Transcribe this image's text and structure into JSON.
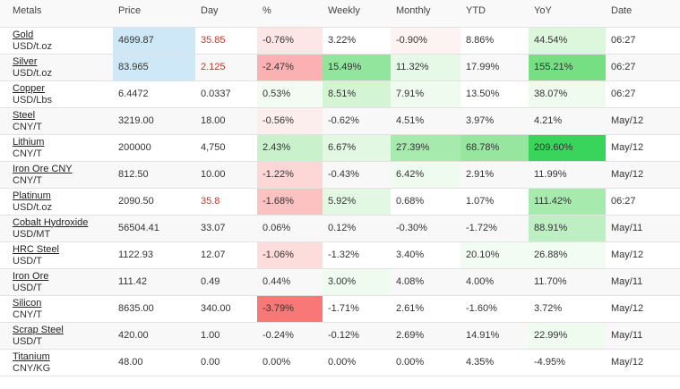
{
  "columns": [
    "Metals",
    "Price",
    "Day",
    "%",
    "Weekly",
    "Monthly",
    "YTD",
    "YoY",
    "Date"
  ],
  "rows": [
    {
      "name": "Gold",
      "unit": "USD/t.oz",
      "price": "4699.87",
      "day": "35.85",
      "pct": "-0.76%",
      "weekly": "3.22%",
      "monthly": "-0.90%",
      "ytd": "8.86%",
      "yoy": "44.54%",
      "date": "06:27",
      "price_bg": "#cfe8f7",
      "day_red": true,
      "bg": {
        "pct": "#fde6e6",
        "weekly": "#ffffff",
        "monthly": "#fdf3f3",
        "ytd": "#ffffff",
        "yoy": "#ddf7dd"
      }
    },
    {
      "name": "Silver",
      "unit": "USD/t.oz",
      "price": "83.965",
      "day": "2.125",
      "pct": "-2.47%",
      "weekly": "15.49%",
      "monthly": "11.32%",
      "ytd": "17.99%",
      "yoy": "155.21%",
      "date": "06:27",
      "price_bg": "#cfe8f7",
      "day_red": true,
      "bg": {
        "pct": "#fbb1b1",
        "weekly": "#92e59d",
        "monthly": "#e6f8e6",
        "ytd": "",
        "yoy": "#76de83"
      }
    },
    {
      "name": "Copper",
      "unit": "USD/Lbs",
      "price": "6.4472",
      "day": "0.0337",
      "pct": "0.53%",
      "weekly": "8.51%",
      "monthly": "7.91%",
      "ytd": "13.50%",
      "yoy": "38.07%",
      "date": "06:27",
      "price_bg": "",
      "day_red": false,
      "bg": {
        "pct": "#f3fcf3",
        "weekly": "#d4f5d4",
        "monthly": "#eefbee",
        "ytd": "",
        "yoy": "#eefbee"
      }
    },
    {
      "name": "Steel",
      "unit": "CNY/T",
      "price": "3219.00",
      "day": "18.00",
      "pct": "-0.56%",
      "weekly": "-0.62%",
      "monthly": "4.51%",
      "ytd": "3.97%",
      "yoy": "4.21%",
      "date": "May/12",
      "price_bg": "",
      "day_red": false,
      "bg": {
        "pct": "#fdeeee",
        "weekly": "",
        "monthly": "",
        "ytd": "",
        "yoy": ""
      }
    },
    {
      "name": "Lithium",
      "unit": "CNY/T",
      "price": "200000",
      "day": "4,750",
      "pct": "2.43%",
      "weekly": "6.67%",
      "monthly": "27.39%",
      "ytd": "68.78%",
      "yoy": "209.60%",
      "date": "May/12",
      "price_bg": "",
      "day_red": false,
      "bg": {
        "pct": "#c9f2cc",
        "weekly": "#e3f8e3",
        "monthly": "#a6eaae",
        "ytd": "#97e6a0",
        "yoy": "#38d55a"
      }
    },
    {
      "name": "Iron Ore CNY",
      "unit": "CNY/T",
      "price": "812.50",
      "day": "10.00",
      "pct": "-1.22%",
      "weekly": "-0.43%",
      "monthly": "6.42%",
      "ytd": "2.91%",
      "yoy": "11.99%",
      "date": "May/12",
      "price_bg": "",
      "day_red": false,
      "bg": {
        "pct": "#fdd6d6",
        "weekly": "",
        "monthly": "#eefbee",
        "ytd": "",
        "yoy": ""
      }
    },
    {
      "name": "Platinum",
      "unit": "USD/t.oz",
      "price": "2090.50",
      "day": "35.8",
      "pct": "-1.68%",
      "weekly": "5.92%",
      "monthly": "0.68%",
      "ytd": "1.07%",
      "yoy": "111.42%",
      "date": "06:27",
      "price_bg": "",
      "day_red": true,
      "bg": {
        "pct": "#fcc2c2",
        "weekly": "#e3f8e3",
        "monthly": "",
        "ytd": "",
        "yoy": "#a6eaae"
      }
    },
    {
      "name": "Cobalt Hydroxide",
      "unit": "USD/MT",
      "price": "56504.41",
      "day": "33.07",
      "pct": "0.06%",
      "weekly": "0.12%",
      "monthly": "-0.30%",
      "ytd": "-1.72%",
      "yoy": "88.91%",
      "date": "May/11",
      "price_bg": "",
      "day_red": false,
      "bg": {
        "pct": "",
        "weekly": "",
        "monthly": "",
        "ytd": "",
        "yoy": "#bdefc3"
      }
    },
    {
      "name": "HRC Steel",
      "unit": "USD/T",
      "price": "1122.93",
      "day": "12.07",
      "pct": "-1.06%",
      "weekly": "-1.32%",
      "monthly": "3.40%",
      "ytd": "20.10%",
      "yoy": "26.88%",
      "date": "May/12",
      "price_bg": "",
      "day_red": false,
      "bg": {
        "pct": "#fddcdc",
        "weekly": "",
        "monthly": "",
        "ytd": "#f2fcf2",
        "yoy": "#f2fcf2"
      }
    },
    {
      "name": "Iron Ore",
      "unit": "USD/T",
      "price": "111.42",
      "day": "0.49",
      "pct": "0.44%",
      "weekly": "3.00%",
      "monthly": "4.08%",
      "ytd": "4.00%",
      "yoy": "11.70%",
      "date": "May/11",
      "price_bg": "",
      "day_red": false,
      "bg": {
        "pct": "",
        "weekly": "#f0fbf0",
        "monthly": "",
        "ytd": "",
        "yoy": ""
      }
    },
    {
      "name": "Silicon",
      "unit": "CNY/T",
      "price": "8635.00",
      "day": "340.00",
      "pct": "-3.79%",
      "weekly": "-1.71%",
      "monthly": "2.61%",
      "ytd": "-1.60%",
      "yoy": "3.72%",
      "date": "May/12",
      "price_bg": "",
      "day_red": false,
      "bg": {
        "pct": "#f87777",
        "weekly": "",
        "monthly": "",
        "ytd": "",
        "yoy": ""
      }
    },
    {
      "name": "Scrap Steel",
      "unit": "USD/T",
      "price": "420.00",
      "day": "1.00",
      "pct": "-0.24%",
      "weekly": "-0.12%",
      "monthly": "2.69%",
      "ytd": "14.91%",
      "yoy": "22.99%",
      "date": "May/11",
      "price_bg": "",
      "day_red": false,
      "bg": {
        "pct": "",
        "weekly": "",
        "monthly": "",
        "ytd": "",
        "yoy": "#f0fbf0"
      }
    },
    {
      "name": "Titanium",
      "unit": "CNY/KG",
      "price": "48.00",
      "day": "0.00",
      "pct": "0.00%",
      "weekly": "0.00%",
      "monthly": "0.00%",
      "ytd": "4.35%",
      "yoy": "-4.95%",
      "date": "May/12",
      "price_bg": "",
      "day_red": false,
      "bg": {
        "pct": "",
        "weekly": "",
        "monthly": "",
        "ytd": "",
        "yoy": ""
      }
    }
  ]
}
